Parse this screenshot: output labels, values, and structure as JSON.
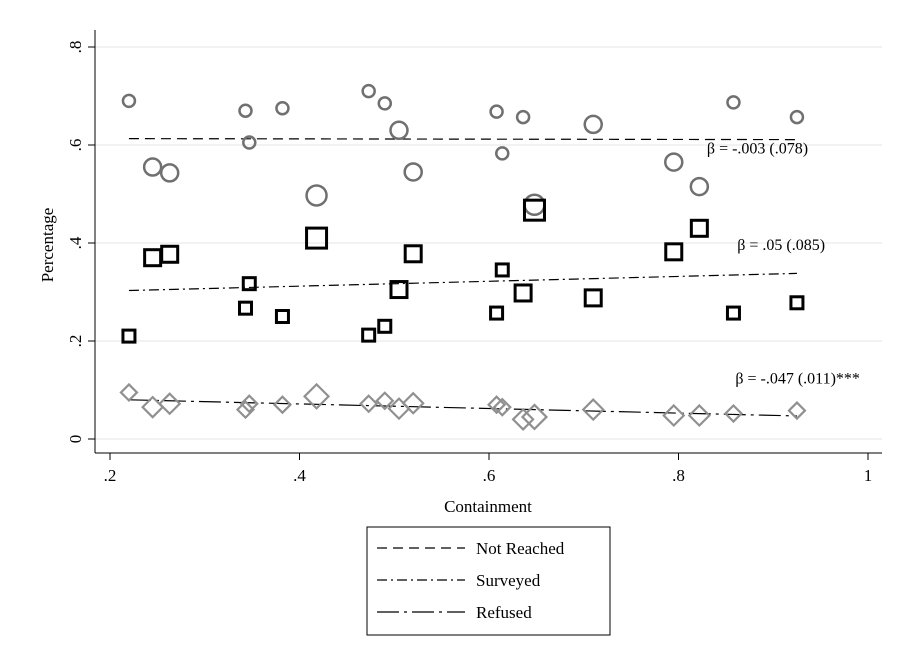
{
  "chart_data": {
    "type": "scatter",
    "xlabel": "Containment",
    "ylabel": "Percentage",
    "xlim": [
      0.2,
      1.0
    ],
    "ylim": [
      0.0,
      0.8
    ],
    "xticks": [
      0.2,
      0.4,
      0.6,
      0.8,
      1.0
    ],
    "xtick_labels": [
      ".2",
      ".4",
      ".6",
      ".8",
      "1"
    ],
    "yticks": [
      0.0,
      0.2,
      0.4,
      0.6,
      0.8
    ],
    "ytick_labels": [
      "0",
      ".2",
      ".4",
      ".6",
      ".8"
    ],
    "grid": "horizontal",
    "legend_position": "bottom",
    "colors": {
      "circle": "#707070",
      "square": "#000000",
      "diamond": "#909090",
      "line": "#000000"
    },
    "series": [
      {
        "name": "Not Reached",
        "marker": "circle",
        "line_style": "dashed",
        "fit": {
          "x": [
            0.22,
            0.925
          ],
          "y": [
            0.613,
            0.611
          ]
        },
        "annotation": "β = -.003 (.078)",
        "annotation_at": [
          0.83,
          0.583
        ],
        "points": [
          {
            "x": 0.22,
            "y": 0.69,
            "s": 1
          },
          {
            "x": 0.245,
            "y": 0.555,
            "s": 2
          },
          {
            "x": 0.263,
            "y": 0.543,
            "s": 2
          },
          {
            "x": 0.343,
            "y": 0.67,
            "s": 1
          },
          {
            "x": 0.347,
            "y": 0.605,
            "s": 1
          },
          {
            "x": 0.382,
            "y": 0.675,
            "s": 1
          },
          {
            "x": 0.418,
            "y": 0.497,
            "s": 3
          },
          {
            "x": 0.473,
            "y": 0.71,
            "s": 1
          },
          {
            "x": 0.49,
            "y": 0.685,
            "s": 1
          },
          {
            "x": 0.505,
            "y": 0.63,
            "s": 2
          },
          {
            "x": 0.52,
            "y": 0.545,
            "s": 2
          },
          {
            "x": 0.608,
            "y": 0.668,
            "s": 1
          },
          {
            "x": 0.614,
            "y": 0.583,
            "s": 1
          },
          {
            "x": 0.636,
            "y": 0.657,
            "s": 1
          },
          {
            "x": 0.648,
            "y": 0.478,
            "s": 3
          },
          {
            "x": 0.71,
            "y": 0.642,
            "s": 2
          },
          {
            "x": 0.795,
            "y": 0.565,
            "s": 2
          },
          {
            "x": 0.822,
            "y": 0.515,
            "s": 2
          },
          {
            "x": 0.858,
            "y": 0.687,
            "s": 1
          },
          {
            "x": 0.925,
            "y": 0.657,
            "s": 1
          }
        ]
      },
      {
        "name": "Surveyed",
        "marker": "square",
        "line_style": "dashdot",
        "fit": {
          "x": [
            0.22,
            0.925
          ],
          "y": [
            0.303,
            0.338
          ]
        },
        "annotation": "β = .05 (.085)",
        "annotation_at": [
          0.862,
          0.386
        ],
        "points": [
          {
            "x": 0.22,
            "y": 0.21,
            "s": 1
          },
          {
            "x": 0.245,
            "y": 0.37,
            "s": 2
          },
          {
            "x": 0.263,
            "y": 0.377,
            "s": 2
          },
          {
            "x": 0.343,
            "y": 0.267,
            "s": 1
          },
          {
            "x": 0.347,
            "y": 0.317,
            "s": 1
          },
          {
            "x": 0.382,
            "y": 0.25,
            "s": 1
          },
          {
            "x": 0.418,
            "y": 0.41,
            "s": 3
          },
          {
            "x": 0.473,
            "y": 0.212,
            "s": 1
          },
          {
            "x": 0.49,
            "y": 0.23,
            "s": 1
          },
          {
            "x": 0.505,
            "y": 0.305,
            "s": 2
          },
          {
            "x": 0.52,
            "y": 0.378,
            "s": 2
          },
          {
            "x": 0.608,
            "y": 0.257,
            "s": 1
          },
          {
            "x": 0.614,
            "y": 0.345,
            "s": 1
          },
          {
            "x": 0.636,
            "y": 0.298,
            "s": 2
          },
          {
            "x": 0.648,
            "y": 0.467,
            "s": 3
          },
          {
            "x": 0.71,
            "y": 0.288,
            "s": 2
          },
          {
            "x": 0.795,
            "y": 0.382,
            "s": 2
          },
          {
            "x": 0.822,
            "y": 0.43,
            "s": 2
          },
          {
            "x": 0.858,
            "y": 0.257,
            "s": 1
          },
          {
            "x": 0.925,
            "y": 0.278,
            "s": 1
          }
        ]
      },
      {
        "name": "Refused",
        "marker": "diamond",
        "line_style": "longdashdot",
        "fit": {
          "x": [
            0.22,
            0.925
          ],
          "y": [
            0.08,
            0.047
          ]
        },
        "annotation": "β = -.047 (.011)***",
        "annotation_at": [
          0.86,
          0.113
        ],
        "points": [
          {
            "x": 0.22,
            "y": 0.095,
            "s": 1
          },
          {
            "x": 0.245,
            "y": 0.065,
            "s": 2
          },
          {
            "x": 0.263,
            "y": 0.072,
            "s": 2
          },
          {
            "x": 0.343,
            "y": 0.06,
            "s": 1
          },
          {
            "x": 0.347,
            "y": 0.072,
            "s": 1
          },
          {
            "x": 0.382,
            "y": 0.07,
            "s": 1
          },
          {
            "x": 0.418,
            "y": 0.087,
            "s": 3
          },
          {
            "x": 0.473,
            "y": 0.072,
            "s": 1
          },
          {
            "x": 0.49,
            "y": 0.078,
            "s": 1
          },
          {
            "x": 0.505,
            "y": 0.062,
            "s": 2
          },
          {
            "x": 0.52,
            "y": 0.073,
            "s": 2
          },
          {
            "x": 0.608,
            "y": 0.07,
            "s": 1
          },
          {
            "x": 0.614,
            "y": 0.065,
            "s": 1
          },
          {
            "x": 0.636,
            "y": 0.04,
            "s": 2
          },
          {
            "x": 0.648,
            "y": 0.045,
            "s": 3
          },
          {
            "x": 0.71,
            "y": 0.06,
            "s": 2
          },
          {
            "x": 0.795,
            "y": 0.048,
            "s": 2
          },
          {
            "x": 0.822,
            "y": 0.048,
            "s": 2
          },
          {
            "x": 0.858,
            "y": 0.052,
            "s": 1
          },
          {
            "x": 0.925,
            "y": 0.058,
            "s": 1
          }
        ]
      }
    ]
  }
}
